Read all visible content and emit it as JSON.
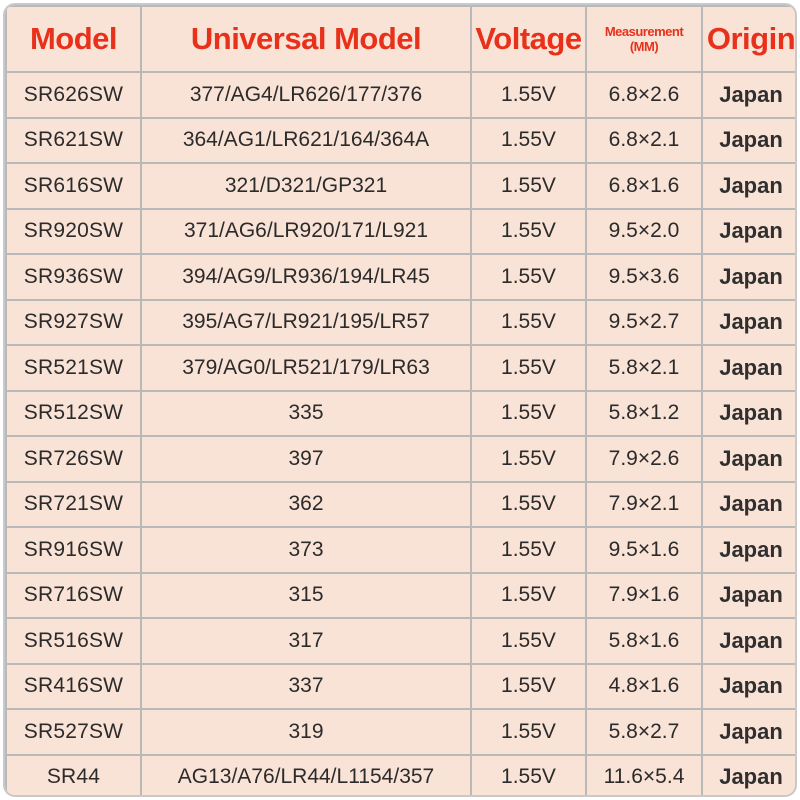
{
  "table": {
    "headers": {
      "model": "Model",
      "universal": "Universal Model",
      "voltage": "Voltage",
      "measurement_line1": "Measurement",
      "measurement_line2": "(MM)",
      "origin": "Origin"
    },
    "rows": [
      {
        "model": "SR626SW",
        "universal": "377/AG4/LR626/177/376",
        "voltage": "1.55V",
        "measurement": "6.8×2.6",
        "origin": "Japan"
      },
      {
        "model": "SR621SW",
        "universal": "364/AG1/LR621/164/364A",
        "voltage": "1.55V",
        "measurement": "6.8×2.1",
        "origin": "Japan"
      },
      {
        "model": "SR616SW",
        "universal": "321/D321/GP321",
        "voltage": "1.55V",
        "measurement": "6.8×1.6",
        "origin": "Japan"
      },
      {
        "model": "SR920SW",
        "universal": "371/AG6/LR920/171/L921",
        "voltage": "1.55V",
        "measurement": "9.5×2.0",
        "origin": "Japan"
      },
      {
        "model": "SR936SW",
        "universal": "394/AG9/LR936/194/LR45",
        "voltage": "1.55V",
        "measurement": "9.5×3.6",
        "origin": "Japan"
      },
      {
        "model": "SR927SW",
        "universal": "395/AG7/LR921/195/LR57",
        "voltage": "1.55V",
        "measurement": "9.5×2.7",
        "origin": "Japan"
      },
      {
        "model": "SR521SW",
        "universal": "379/AG0/LR521/179/LR63",
        "voltage": "1.55V",
        "measurement": "5.8×2.1",
        "origin": "Japan"
      },
      {
        "model": "SR512SW",
        "universal": "335",
        "voltage": "1.55V",
        "measurement": "5.8×1.2",
        "origin": "Japan"
      },
      {
        "model": "SR726SW",
        "universal": "397",
        "voltage": "1.55V",
        "measurement": "7.9×2.6",
        "origin": "Japan"
      },
      {
        "model": "SR721SW",
        "universal": "362",
        "voltage": "1.55V",
        "measurement": "7.9×2.1",
        "origin": "Japan"
      },
      {
        "model": "SR916SW",
        "universal": "373",
        "voltage": "1.55V",
        "measurement": "9.5×1.6",
        "origin": "Japan"
      },
      {
        "model": "SR716SW",
        "universal": "315",
        "voltage": "1.55V",
        "measurement": "7.9×1.6",
        "origin": "Japan"
      },
      {
        "model": "SR516SW",
        "universal": "317",
        "voltage": "1.55V",
        "measurement": "5.8×1.6",
        "origin": "Japan"
      },
      {
        "model": "SR416SW",
        "universal": "337",
        "voltage": "1.55V",
        "measurement": "4.8×1.6",
        "origin": "Japan"
      },
      {
        "model": "SR527SW",
        "universal": "319",
        "voltage": "1.55V",
        "measurement": "5.8×2.7",
        "origin": "Japan"
      },
      {
        "model": "SR44",
        "universal": "AG13/A76/LR44/L1154/357",
        "voltage": "1.55V",
        "measurement": "11.6×5.4",
        "origin": "Japan"
      }
    ]
  },
  "colors": {
    "header_text": "#e8311a",
    "background": "#f9e2d6",
    "border": "#b9b9b9"
  }
}
